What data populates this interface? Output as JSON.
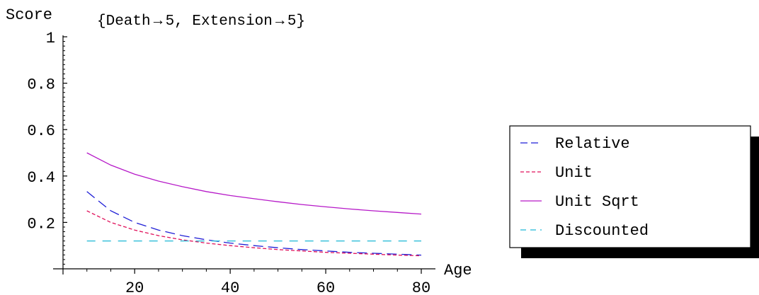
{
  "chart_data": {
    "type": "line",
    "title": "{Death → 5, Extension → 5}",
    "xlabel": "Age",
    "ylabel": "Score",
    "xlim": [
      5,
      80
    ],
    "ylim": [
      0,
      1
    ],
    "x_ticks": [
      20,
      40,
      60,
      80
    ],
    "x_tick_labels": [
      "20",
      "40",
      "60",
      "80"
    ],
    "y_ticks": [
      0.2,
      0.4,
      0.6,
      0.8,
      1
    ],
    "y_tick_labels": [
      "0.2",
      "0.4",
      "0.6",
      "0.8",
      "1"
    ],
    "grid": false,
    "legend_position": "right",
    "x": [
      10,
      15,
      20,
      25,
      30,
      35,
      40,
      45,
      50,
      55,
      60,
      65,
      70,
      75,
      80
    ],
    "series": [
      {
        "name": "Relative",
        "color": "#1f1fd6",
        "dash": "long",
        "values": [
          0.333,
          0.25,
          0.2,
          0.167,
          0.143,
          0.125,
          0.111,
          0.1,
          0.091,
          0.083,
          0.077,
          0.071,
          0.067,
          0.063,
          0.059
        ]
      },
      {
        "name": "Unit",
        "color": "#e0105a",
        "dash": "short",
        "values": [
          0.25,
          0.2,
          0.167,
          0.143,
          0.125,
          0.111,
          0.1,
          0.091,
          0.083,
          0.077,
          0.071,
          0.067,
          0.063,
          0.059,
          0.056
        ]
      },
      {
        "name": "Unit Sqrt",
        "color": "#b619c8",
        "dash": "solid",
        "values": [
          0.5,
          0.447,
          0.408,
          0.378,
          0.354,
          0.333,
          0.316,
          0.302,
          0.289,
          0.277,
          0.267,
          0.258,
          0.25,
          0.243,
          0.236
        ]
      },
      {
        "name": "Discounted",
        "color": "#1fb8d6",
        "dash": "dashdot",
        "values": [
          0.12,
          0.12,
          0.12,
          0.12,
          0.12,
          0.12,
          0.12,
          0.12,
          0.12,
          0.12,
          0.12,
          0.12,
          0.12,
          0.12,
          0.12
        ]
      }
    ]
  }
}
